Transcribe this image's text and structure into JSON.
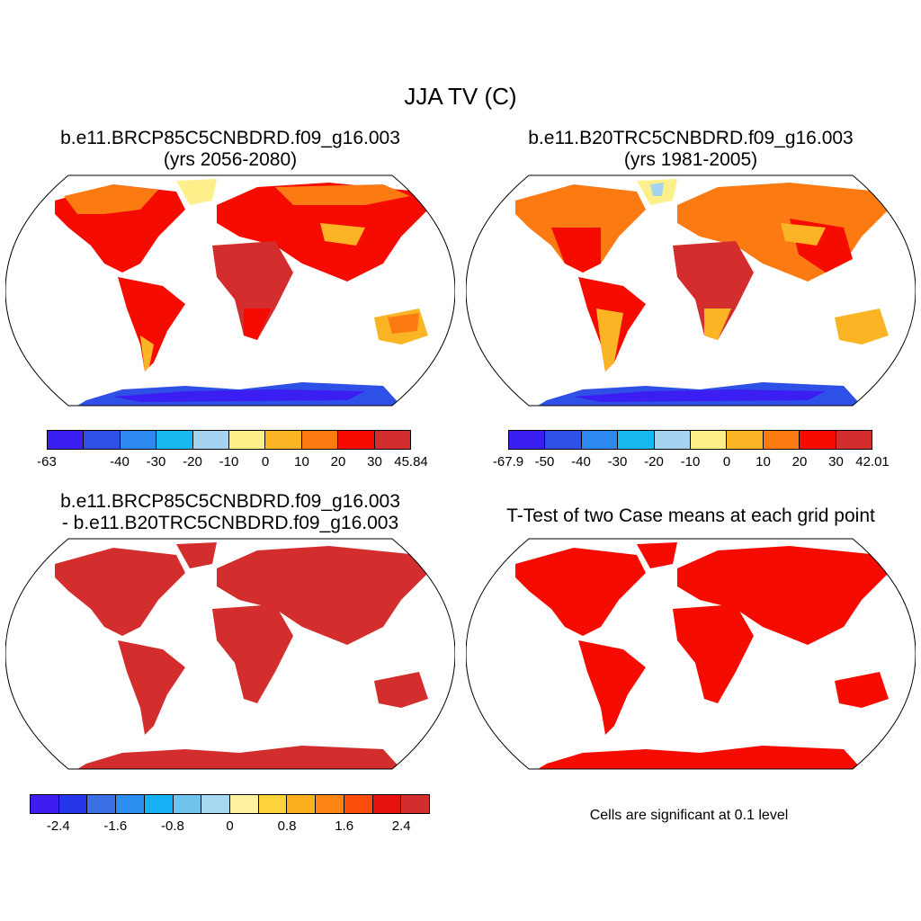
{
  "title": "JJA TV (C)",
  "panels": [
    {
      "title_line1": "b.e11.BRCP85C5CNBDRD.f09_g16.003",
      "title_line2": "(yrs 2056-2080)"
    },
    {
      "title_line1": "b.e11.B20TRC5CNBDRD.f09_g16.003",
      "title_line2": "(yrs 1981-2005)"
    },
    {
      "title_line1": "b.e11.BRCP85C5CNBDRD.f09_g16.003",
      "title_line2": "- b.e11.B20TRC5CNBDRD.f09_g16.003"
    },
    {
      "title_line1": "T-Test of two Case means at each grid point",
      "title_line2": ""
    }
  ],
  "colorbars": [
    {
      "colors": [
        "#3b1ef2",
        "#2f50e6",
        "#2b89f0",
        "#16b8f0",
        "#a6d3ef",
        "#fdf08a",
        "#fbb423",
        "#fb7a12",
        "#f50b00",
        "#d42d2d"
      ],
      "labels": [
        "-63",
        "-40",
        "-30",
        "-20",
        "-10",
        "0",
        "10",
        "20",
        "30",
        "45.84"
      ],
      "positions": [
        0,
        0.2,
        0.3,
        0.4,
        0.5,
        0.6,
        0.7,
        0.8,
        0.9,
        1.0
      ]
    },
    {
      "colors": [
        "#3b1ef2",
        "#2f50e6",
        "#2b89f0",
        "#16b8f0",
        "#a6d3ef",
        "#fdf08a",
        "#fbb423",
        "#fb7a12",
        "#f50b00",
        "#d42d2d"
      ],
      "labels": [
        "-67.9",
        "-50",
        "-40",
        "-30",
        "-20",
        "-10",
        "0",
        "10",
        "20",
        "30",
        "42.01"
      ],
      "positions": [
        0,
        0.1,
        0.2,
        0.3,
        0.4,
        0.5,
        0.6,
        0.7,
        0.8,
        0.9,
        1.0
      ]
    },
    {
      "colors": [
        "#3f1cf0",
        "#2435ea",
        "#3c6fe5",
        "#2a8ff0",
        "#16b1f4",
        "#6ec3ec",
        "#a8d8f1",
        "#fff2a0",
        "#fcd43a",
        "#fcb01d",
        "#fc8412",
        "#fc4c0c",
        "#e5120d",
        "#d32d2d"
      ],
      "labels": [
        "-2.4",
        "-1.6",
        "-0.8",
        "0",
        "0.8",
        "1.6",
        "2.4"
      ],
      "positions": [
        0.0714,
        0.2143,
        0.3571,
        0.5,
        0.6429,
        0.7857,
        0.9286
      ]
    }
  ],
  "significance_note": "Cells are significant at 0.1 level"
}
